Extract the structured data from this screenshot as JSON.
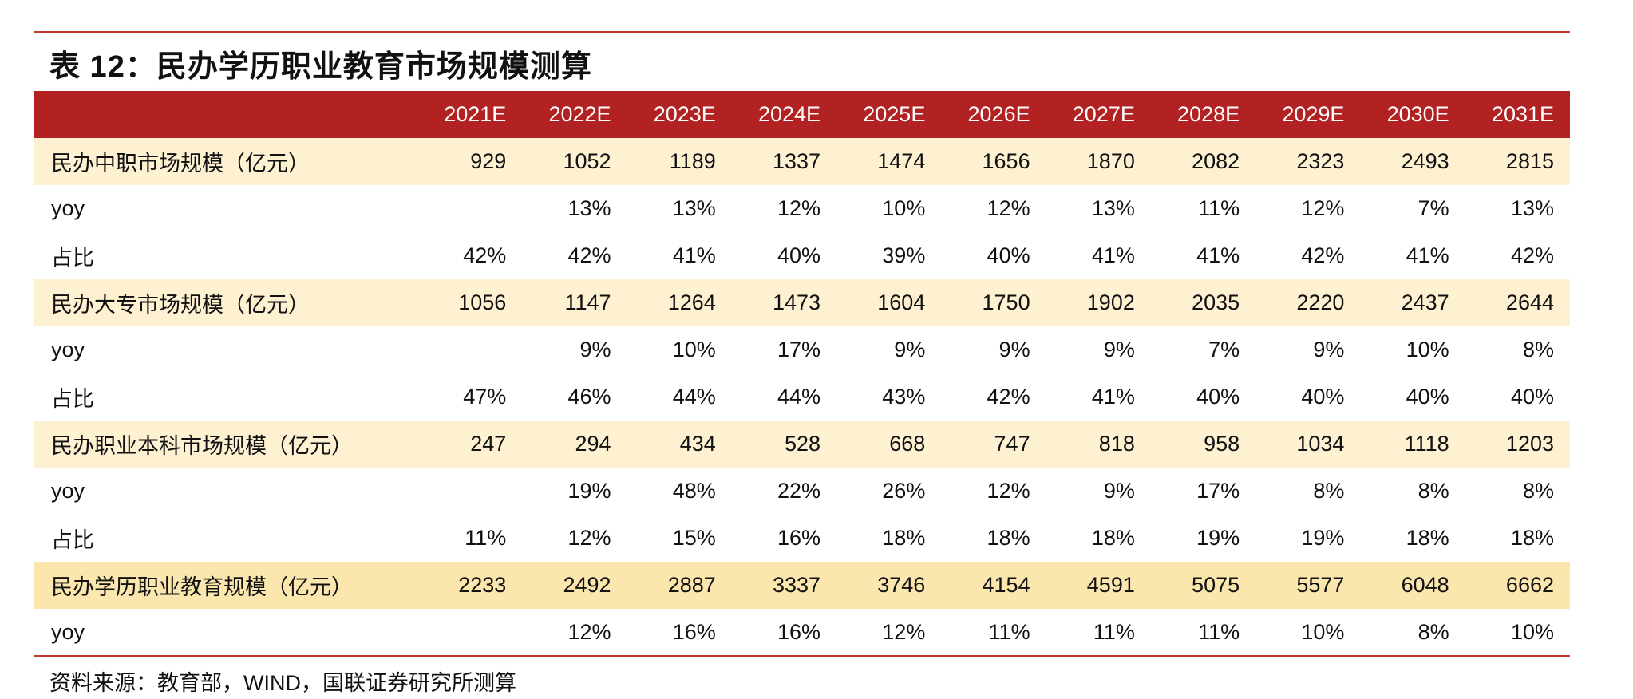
{
  "title": "表 12：民办学历职业教育市场规模测算",
  "table": {
    "header": [
      "2021E",
      "2022E",
      "2023E",
      "2024E",
      "2025E",
      "2026E",
      "2027E",
      "2028E",
      "2029E",
      "2030E",
      "2031E"
    ],
    "rows": [
      [
        "民办中职市场规模（亿元）",
        929,
        1052,
        1189,
        1337,
        1474,
        1656,
        1870,
        2082,
        2323,
        2493,
        2815
      ],
      [
        "yoy",
        null,
        "13%",
        "13%",
        "12%",
        "10%",
        "12%",
        "13%",
        "11%",
        "12%",
        "7%",
        "13%"
      ],
      [
        "占比",
        "42%",
        "42%",
        "41%",
        "40%",
        "39%",
        "40%",
        "41%",
        "41%",
        "42%",
        "41%",
        "42%"
      ],
      [
        "民办大专市场规模（亿元）",
        1056,
        1147,
        1264,
        1473,
        1604,
        1750,
        1902,
        2035,
        2220,
        2437,
        2644
      ],
      [
        "yoy",
        null,
        "9%",
        "10%",
        "17%",
        "9%",
        "9%",
        "9%",
        "7%",
        "9%",
        "10%",
        "8%"
      ],
      [
        "占比",
        "47%",
        "46%",
        "44%",
        "44%",
        "43%",
        "42%",
        "41%",
        "40%",
        "40%",
        "40%",
        "40%"
      ],
      [
        "民办职业本科市场规模（亿元）",
        247,
        294,
        434,
        528,
        668,
        747,
        818,
        958,
        1034,
        1118,
        1203
      ],
      [
        "yoy",
        null,
        "19%",
        "48%",
        "22%",
        "26%",
        "12%",
        "9%",
        "17%",
        "8%",
        "8%",
        "8%"
      ],
      [
        "占比",
        "11%",
        "12%",
        "15%",
        "16%",
        "18%",
        "18%",
        "18%",
        "19%",
        "19%",
        "18%",
        "18%"
      ],
      [
        "民办学历职业教育规模（亿元）",
        2233,
        2492,
        2887,
        3337,
        3746,
        4154,
        4591,
        5075,
        5577,
        6048,
        6662
      ],
      [
        "yoy",
        null,
        "12%",
        "16%",
        "16%",
        "12%",
        "11%",
        "11%",
        "11%",
        "10%",
        "8%",
        "10%"
      ]
    ]
  },
  "source": "资料来源：教育部，WIND，国联证券研究所测算"
}
